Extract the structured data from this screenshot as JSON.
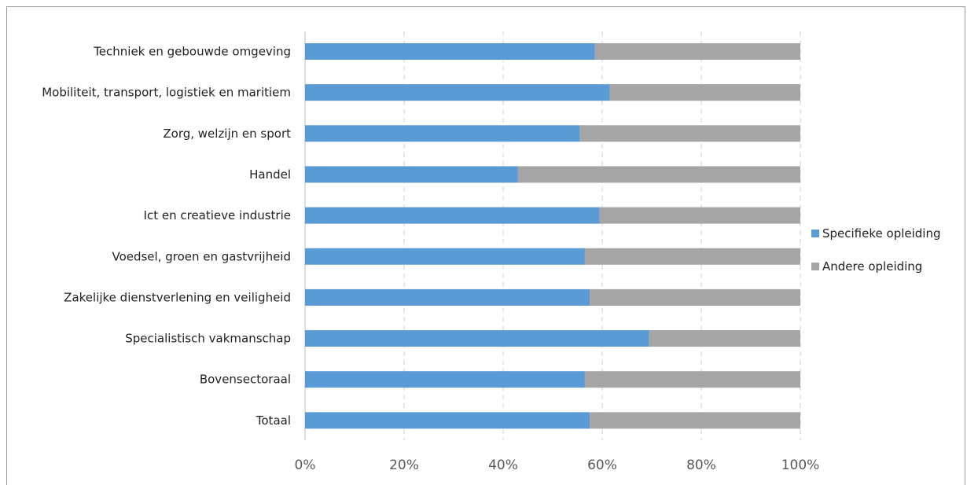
{
  "chart_data": {
    "type": "bar",
    "orientation": "horizontal",
    "stacked": "percent",
    "categories": [
      "Techniek en gebouwde omgeving",
      "Mobiliteit, transport, logistiek en maritiem",
      "Zorg, welzijn en sport",
      "Handel",
      "Ict en creatieve industrie",
      "Voedsel, groen en gastvrijheid",
      "Zakelijke dienstverlening en veiligheid",
      "Specialistisch vakmanschap",
      "Bovensectoraal",
      "Totaal"
    ],
    "series": [
      {
        "name": "Specifieke opleiding",
        "color": "#5b9bd5",
        "values": [
          58.5,
          61.5,
          55.5,
          43,
          59.5,
          56.5,
          57.5,
          69.5,
          56.5,
          57.5
        ]
      },
      {
        "name": "Andere opleiding",
        "color": "#a5a5a5",
        "values": [
          41.5,
          38.5,
          44.5,
          57,
          40.5,
          43.5,
          42.5,
          30.5,
          43.5,
          42.5
        ]
      }
    ],
    "xlim": [
      0,
      100
    ],
    "x_ticks": [
      "0%",
      "20%",
      "40%",
      "60%",
      "80%",
      "100%"
    ],
    "grid": "vertical-dashed",
    "legend_position": "right"
  }
}
